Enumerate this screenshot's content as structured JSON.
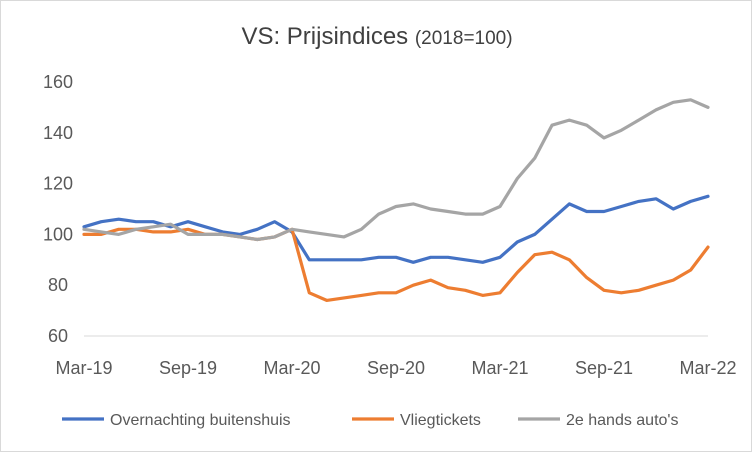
{
  "chart_data": {
    "type": "line",
    "title": "VS: Prijsindices",
    "subtitle": "(2018=100)",
    "xlabel": "",
    "ylabel": "",
    "ylim": [
      60,
      160
    ],
    "yticks": [
      60,
      80,
      100,
      120,
      140,
      160
    ],
    "grid": false,
    "legend_position": "bottom",
    "x_tick_labels": [
      "Mar-19",
      "Sep-19",
      "Mar-20",
      "Sep-20",
      "Mar-21",
      "Sep-21",
      "Mar-22"
    ],
    "x_tick_index": [
      0,
      6,
      12,
      18,
      24,
      30,
      36
    ],
    "x": [
      "Mar-19",
      "Apr-19",
      "May-19",
      "Jun-19",
      "Jul-19",
      "Aug-19",
      "Sep-19",
      "Oct-19",
      "Nov-19",
      "Dec-19",
      "Jan-20",
      "Feb-20",
      "Mar-20",
      "Apr-20",
      "May-20",
      "Jun-20",
      "Jul-20",
      "Aug-20",
      "Sep-20",
      "Oct-20",
      "Nov-20",
      "Dec-20",
      "Jan-21",
      "Feb-21",
      "Mar-21",
      "Apr-21",
      "May-21",
      "Jun-21",
      "Jul-21",
      "Aug-21",
      "Sep-21",
      "Oct-21",
      "Nov-21",
      "Dec-21",
      "Jan-22",
      "Feb-22",
      "Mar-22"
    ],
    "series": [
      {
        "name": "Overnachting buitenshuis",
        "color": "#4472C4",
        "values": [
          103,
          105,
          106,
          105,
          105,
          103,
          105,
          103,
          101,
          100,
          102,
          105,
          101,
          90,
          90,
          90,
          90,
          91,
          91,
          89,
          91,
          91,
          90,
          89,
          91,
          97,
          100,
          106,
          112,
          109,
          109,
          111,
          113,
          114,
          110,
          113,
          115
        ]
      },
      {
        "name": "Vliegtickets",
        "color": "#ED7D31",
        "values": [
          100,
          100,
          102,
          102,
          101,
          101,
          102,
          100,
          100,
          99,
          98,
          99,
          102,
          77,
          74,
          75,
          76,
          77,
          77,
          80,
          82,
          79,
          78,
          76,
          77,
          85,
          92,
          93,
          90,
          83,
          78,
          77,
          78,
          80,
          82,
          86,
          95
        ]
      },
      {
        "name": "2e hands auto's",
        "color": "#A5A5A5",
        "values": [
          102,
          101,
          100,
          102,
          103,
          104,
          100,
          100,
          100,
          99,
          98,
          99,
          102,
          101,
          100,
          99,
          102,
          108,
          111,
          112,
          110,
          109,
          108,
          108,
          111,
          122,
          130,
          143,
          145,
          143,
          138,
          141,
          145,
          149,
          152,
          153,
          150
        ]
      }
    ]
  }
}
